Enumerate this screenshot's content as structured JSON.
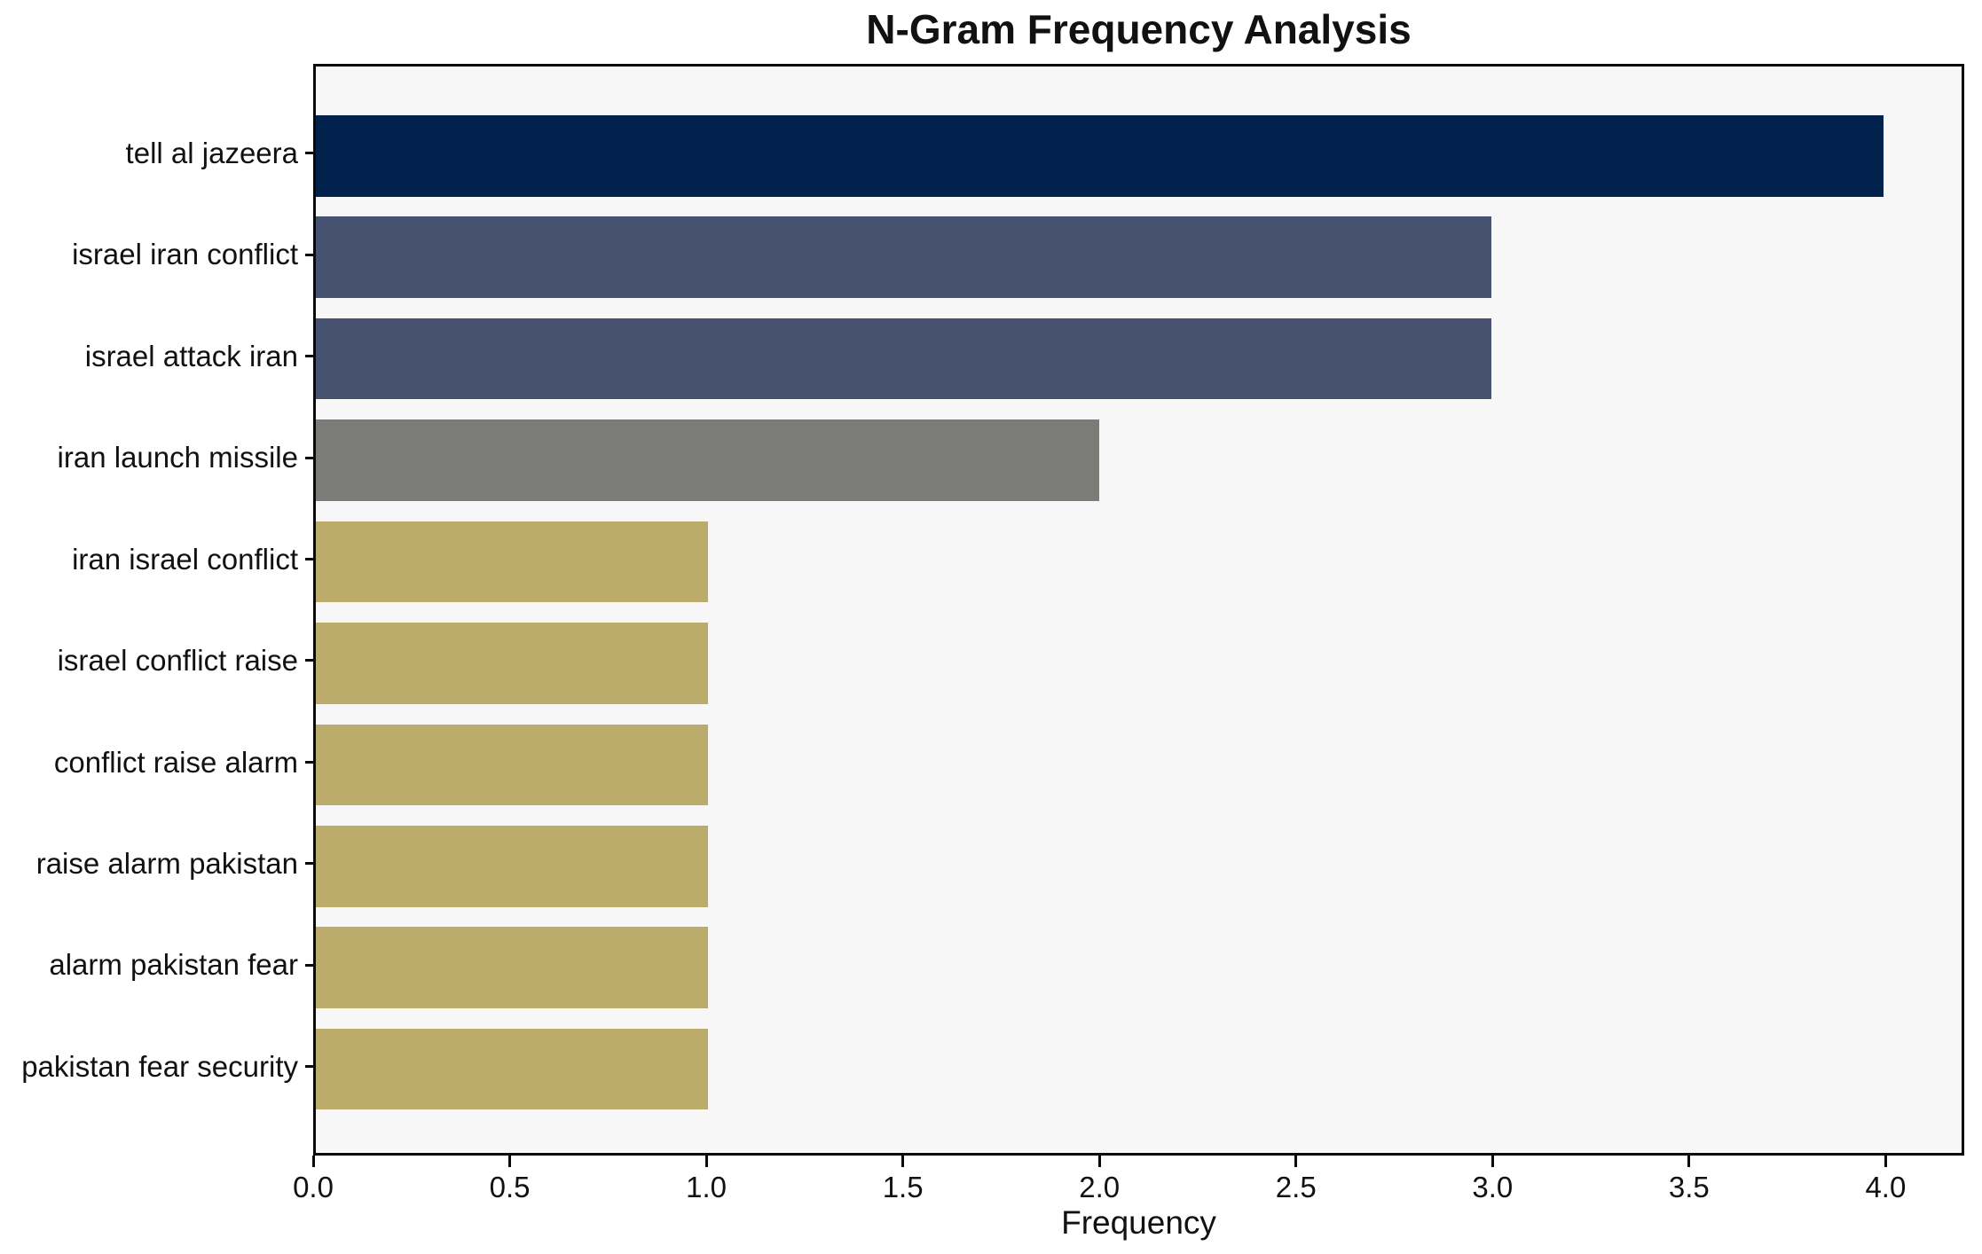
{
  "chart_data": {
    "type": "bar",
    "orientation": "horizontal",
    "title": "N-Gram Frequency Analysis",
    "xlabel": "Frequency",
    "ylabel": "",
    "categories": [
      "tell al jazeera",
      "israel iran conflict",
      "israel attack iran",
      "iran launch missile",
      "iran israel conflict",
      "israel conflict raise",
      "conflict raise alarm",
      "raise alarm pakistan",
      "alarm pakistan fear",
      "pakistan fear security"
    ],
    "values": [
      4,
      3,
      3,
      2,
      1,
      1,
      1,
      1,
      1,
      1
    ],
    "bar_colors": [
      "#02224E",
      "#46526F",
      "#46526F",
      "#7B7B78",
      "#BCAC6C",
      "#BCAC6C",
      "#BCAC6C",
      "#BCAC6C",
      "#BCAC6C",
      "#BCAC6C"
    ],
    "xlim": [
      0,
      4.2
    ],
    "x_ticks": [
      {
        "value": 0.0,
        "label": "0.0"
      },
      {
        "value": 0.5,
        "label": "0.5"
      },
      {
        "value": 1.0,
        "label": "1.0"
      },
      {
        "value": 1.5,
        "label": "1.5"
      },
      {
        "value": 2.0,
        "label": "2.0"
      },
      {
        "value": 2.5,
        "label": "2.5"
      },
      {
        "value": 3.0,
        "label": "3.0"
      },
      {
        "value": 3.5,
        "label": "3.5"
      },
      {
        "value": 4.0,
        "label": "4.0"
      }
    ],
    "grid": false,
    "legend": null,
    "plot_background": "#F7F7F7",
    "figure_background": "#FFFFFF",
    "spine_color": "#0A0A0A",
    "text_color": "#111111"
  }
}
